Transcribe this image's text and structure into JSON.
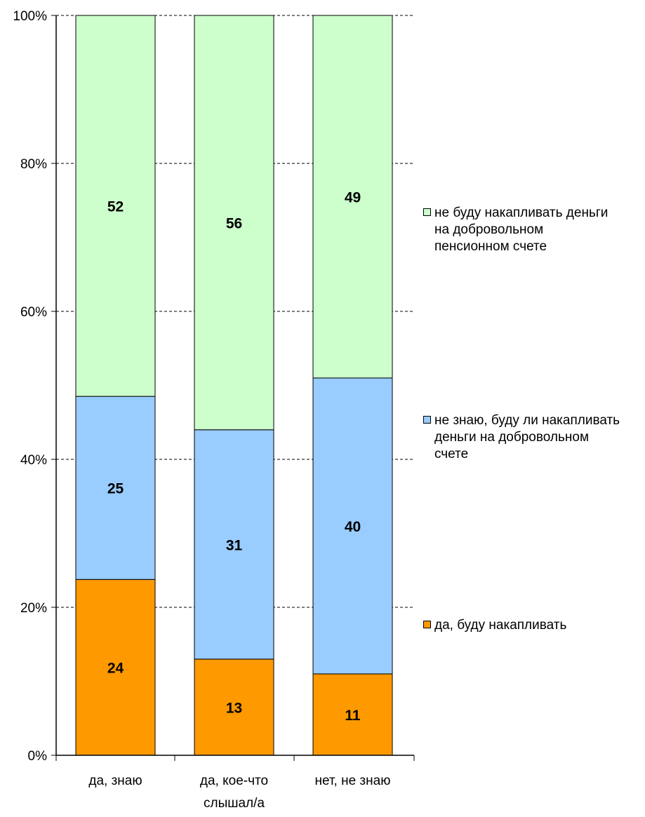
{
  "chart_data": {
    "type": "bar",
    "stacked": true,
    "percent_stacked": true,
    "categories": [
      "да, знаю",
      "да, кое-что слышал/а",
      "нет, не знаю"
    ],
    "series": [
      {
        "name": "да, буду накапливать",
        "values": [
          24,
          13,
          11
        ],
        "color": "#FF9900"
      },
      {
        "name": "не знаю, буду ли накапливать деньги на добровольном счете",
        "values": [
          25,
          31,
          40
        ],
        "color": "#99CCFF"
      },
      {
        "name": "не буду накапливать деньги на добровольном пенсионном счете",
        "values": [
          52,
          56,
          49
        ],
        "color": "#CCFFCC"
      }
    ],
    "ytick_labels": [
      "0%",
      "20%",
      "40%",
      "60%",
      "80%",
      "100%"
    ],
    "ylim": [
      0,
      100
    ],
    "grid": true,
    "legend_position": "right"
  }
}
